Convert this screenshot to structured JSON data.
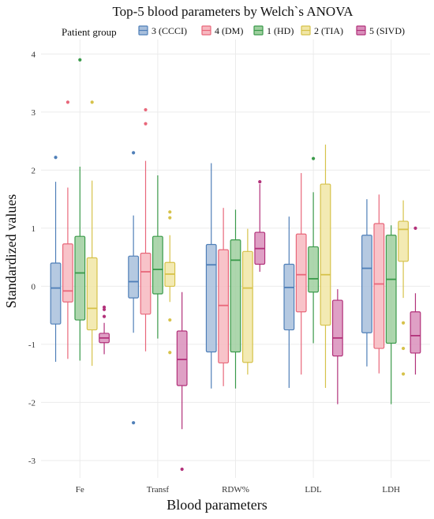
{
  "chart_data": {
    "type": "box",
    "title": "Top-5 blood parameters by Welch`s ANOVA",
    "xlabel": "Blood parameters",
    "ylabel": "Standardized values",
    "ylim": [
      -3.3,
      4.25
    ],
    "yticks": [
      -3,
      -2,
      -1,
      0,
      1,
      2,
      3,
      4
    ],
    "grid": true,
    "legend": {
      "title": "Patient group",
      "position": "top"
    },
    "categories": [
      "Fe",
      "Transf",
      "RDW%",
      "LDL",
      "LDH"
    ],
    "series": [
      {
        "name": "3 (CCCI)",
        "stroke": "#4f7fb8",
        "fill": "#a8bfdc",
        "boxes": [
          {
            "whisker_low": -1.3,
            "q1": -0.65,
            "median": -0.03,
            "q3": 0.4,
            "whisker_high": 1.8,
            "outliers": [
              2.22
            ]
          },
          {
            "whisker_low": -0.8,
            "q1": -0.2,
            "median": 0.08,
            "q3": 0.52,
            "whisker_high": 1.22,
            "outliers": [
              2.3,
              -2.35
            ]
          },
          {
            "whisker_low": -1.76,
            "q1": -1.13,
            "median": 0.37,
            "q3": 0.72,
            "whisker_high": 2.12,
            "outliers": []
          },
          {
            "whisker_low": -1.75,
            "q1": -0.75,
            "median": -0.02,
            "q3": 0.38,
            "whisker_high": 1.2,
            "outliers": []
          },
          {
            "whisker_low": -1.38,
            "q1": -0.8,
            "median": 0.31,
            "q3": 0.88,
            "whisker_high": 1.5,
            "outliers": []
          }
        ]
      },
      {
        "name": "4 (DM)",
        "stroke": "#e8677a",
        "fill": "#f7b8c0",
        "boxes": [
          {
            "whisker_low": -1.25,
            "q1": -0.27,
            "median": -0.08,
            "q3": 0.73,
            "whisker_high": 1.7,
            "outliers": [
              3.17
            ]
          },
          {
            "whisker_low": -1.12,
            "q1": -0.48,
            "median": 0.25,
            "q3": 0.57,
            "whisker_high": 2.16,
            "outliers": [
              2.8,
              3.04
            ]
          },
          {
            "whisker_low": -1.72,
            "q1": -1.32,
            "median": -0.33,
            "q3": 0.63,
            "whisker_high": 1.35,
            "outliers": []
          },
          {
            "whisker_low": -1.52,
            "q1": -0.44,
            "median": 0.2,
            "q3": 0.9,
            "whisker_high": 1.95,
            "outliers": []
          },
          {
            "whisker_low": -1.5,
            "q1": -1.07,
            "median": 0.04,
            "q3": 1.08,
            "whisker_high": 1.58,
            "outliers": []
          }
        ]
      },
      {
        "name": "1 (HD)",
        "stroke": "#3a9a4a",
        "fill": "#9fcf9f",
        "boxes": [
          {
            "whisker_low": -1.28,
            "q1": -0.58,
            "median": 0.23,
            "q3": 0.86,
            "whisker_high": 2.06,
            "outliers": [
              3.9
            ]
          },
          {
            "whisker_low": -0.9,
            "q1": -0.13,
            "median": 0.29,
            "q3": 0.86,
            "whisker_high": 1.91,
            "outliers": []
          },
          {
            "whisker_low": -1.76,
            "q1": -1.13,
            "median": 0.45,
            "q3": 0.8,
            "whisker_high": 1.32,
            "outliers": []
          },
          {
            "whisker_low": -0.98,
            "q1": -0.1,
            "median": 0.13,
            "q3": 0.68,
            "whisker_high": 1.62,
            "outliers": [
              2.2
            ]
          },
          {
            "whisker_low": -2.03,
            "q1": -0.98,
            "median": 0.12,
            "q3": 0.88,
            "whisker_high": 1.05,
            "outliers": []
          }
        ]
      },
      {
        "name": "2 (TIA)",
        "stroke": "#d6c24a",
        "fill": "#f1e6a6",
        "boxes": [
          {
            "whisker_low": -1.37,
            "q1": -0.75,
            "median": -0.38,
            "q3": 0.49,
            "whisker_high": 1.82,
            "outliers": [
              3.17
            ]
          },
          {
            "whisker_low": -0.27,
            "q1": 0.0,
            "median": 0.21,
            "q3": 0.41,
            "whisker_high": 0.88,
            "outliers": [
              1.18,
              1.28,
              -0.58,
              -1.14
            ]
          },
          {
            "whisker_low": -1.52,
            "q1": -1.31,
            "median": -0.03,
            "q3": 0.6,
            "whisker_high": 0.99,
            "outliers": []
          },
          {
            "whisker_low": -1.75,
            "q1": -0.67,
            "median": 0.2,
            "q3": 1.76,
            "whisker_high": 2.44,
            "outliers": []
          },
          {
            "whisker_low": -0.2,
            "q1": 0.43,
            "median": 0.98,
            "q3": 1.12,
            "whisker_high": 1.48,
            "outliers": [
              -0.63,
              -1.07,
              -1.51
            ]
          }
        ]
      },
      {
        "name": "5 (SIVD)",
        "stroke": "#b2317a",
        "fill": "#d98fbb",
        "boxes": [
          {
            "whisker_low": -1.17,
            "q1": -0.97,
            "median": -0.89,
            "q3": -0.81,
            "whisker_high": -0.63,
            "outliers": [
              -0.36,
              -0.4,
              -0.52
            ]
          },
          {
            "whisker_low": -2.46,
            "q1": -1.71,
            "median": -1.26,
            "q3": -0.77,
            "whisker_high": -0.1,
            "outliers": [
              -3.15
            ]
          },
          {
            "whisker_low": 0.25,
            "q1": 0.38,
            "median": 0.65,
            "q3": 0.93,
            "whisker_high": 1.76,
            "outliers": [
              1.8
            ]
          },
          {
            "whisker_low": -2.03,
            "q1": -1.2,
            "median": -0.89,
            "q3": -0.24,
            "whisker_high": -0.05,
            "outliers": []
          },
          {
            "whisker_low": -1.52,
            "q1": -1.15,
            "median": -0.85,
            "q3": -0.44,
            "whisker_high": -0.12,
            "outliers": [
              1.0
            ]
          }
        ]
      }
    ]
  }
}
